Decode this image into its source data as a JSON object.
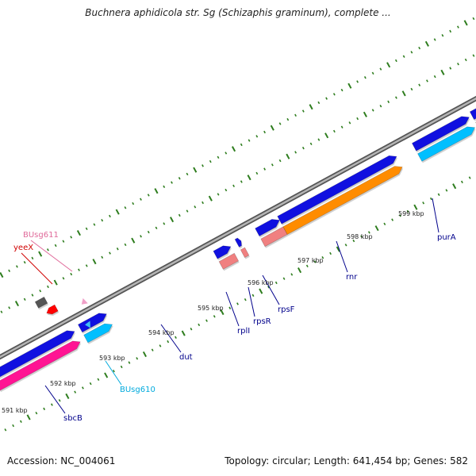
{
  "title": "Buchnera aphidicola str. Sg (Schizaphis graminum), complete ...",
  "footer": {
    "accession_label": "Accession:",
    "accession_value": "NC_004061",
    "topology_label": "Topology:",
    "topology_value": "circular",
    "length_label": "Length:",
    "length_value": "641,454 bp",
    "genes_label": "Genes:",
    "genes_value": "582"
  },
  "colors": {
    "backbone": "#8a8a8a",
    "tick": "#2e7d1e",
    "cds_forward": "#1010e0",
    "cds_reverse": "#ff1493",
    "replication_recombination": "#ff1493",
    "transcription": "#ff8c00",
    "translation": "#f08080",
    "nucleotide_metabolism": "#00bfff",
    "unknown": "#555555",
    "trna": "#ff0000",
    "other": "#b8b06a",
    "label_blue": "#00008b",
    "label_pink": "#e06a9a",
    "label_cyan": "#00aadd",
    "label_red": "#d00000"
  },
  "ruler": {
    "unit": "kbp",
    "ticks": [
      "591 kbp",
      "592 kbp",
      "593 kbp",
      "594 kbp",
      "595 kbp",
      "596 kbp",
      "597 kbp",
      "598 kbp",
      "599 kbp"
    ]
  },
  "genes": [
    {
      "name": "sbcB",
      "label_color": "label_blue"
    },
    {
      "name": "BUsg610",
      "label_color": "label_cyan"
    },
    {
      "name": "dut",
      "label_color": "label_blue"
    },
    {
      "name": "rplI",
      "label_color": "label_blue"
    },
    {
      "name": "rpsR",
      "label_color": "label_blue"
    },
    {
      "name": "rpsF",
      "label_color": "label_blue"
    },
    {
      "name": "rnr",
      "label_color": "label_blue"
    },
    {
      "name": "purA",
      "label_color": "label_blue"
    },
    {
      "name": "BUsg611",
      "label_color": "label_pink"
    },
    {
      "name": "yeeX",
      "label_color": "label_red"
    }
  ]
}
